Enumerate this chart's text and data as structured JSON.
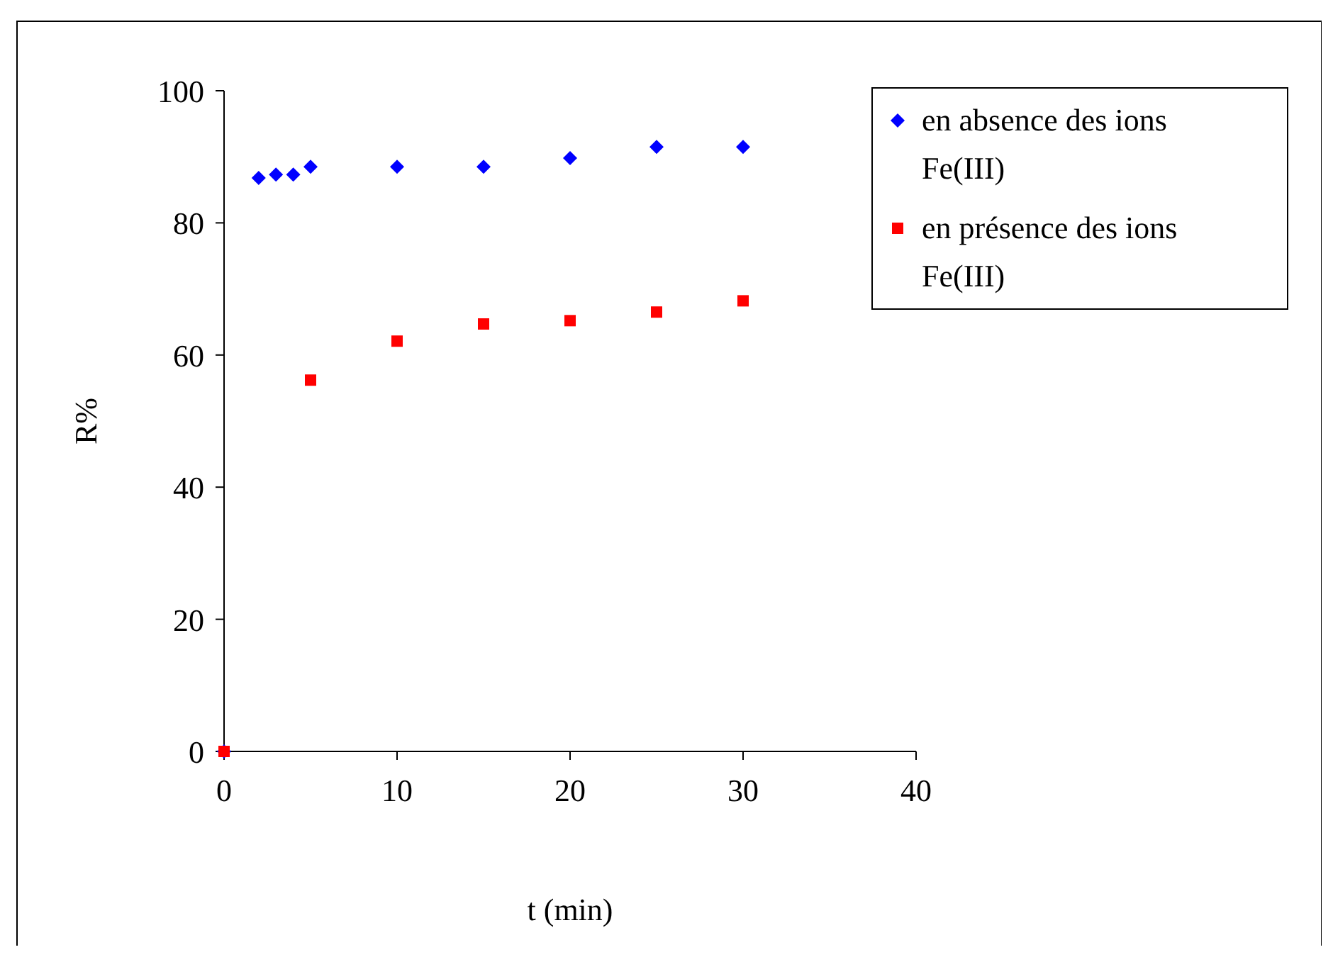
{
  "chart_data": {
    "type": "scatter",
    "xlabel": "t (min)",
    "ylabel": "R%",
    "x": [
      0,
      2,
      3,
      4,
      5,
      10,
      15,
      20,
      25,
      30
    ],
    "series": [
      {
        "name": "en absence des ions Fe(III)",
        "color": "#0000ff",
        "marker": "diamond",
        "values": [
          0,
          86.8,
          87.3,
          87.3,
          88.5,
          88.5,
          88.5,
          89.8,
          91.5,
          91.5
        ]
      },
      {
        "name": "en présence des ions Fe(III)",
        "color": "#ff0000",
        "marker": "square",
        "x": [
          0,
          5,
          10,
          15,
          20,
          25,
          30
        ],
        "values": [
          0,
          56.2,
          62.1,
          64.7,
          65.2,
          66.5,
          68.2
        ]
      }
    ],
    "xlim": [
      0,
      40
    ],
    "xticks": [
      0,
      10,
      20,
      30,
      40
    ],
    "ylim": [
      0,
      100
    ],
    "yticks": [
      0,
      20,
      40,
      60,
      80,
      100
    ],
    "grid": false,
    "legend": "top right"
  }
}
